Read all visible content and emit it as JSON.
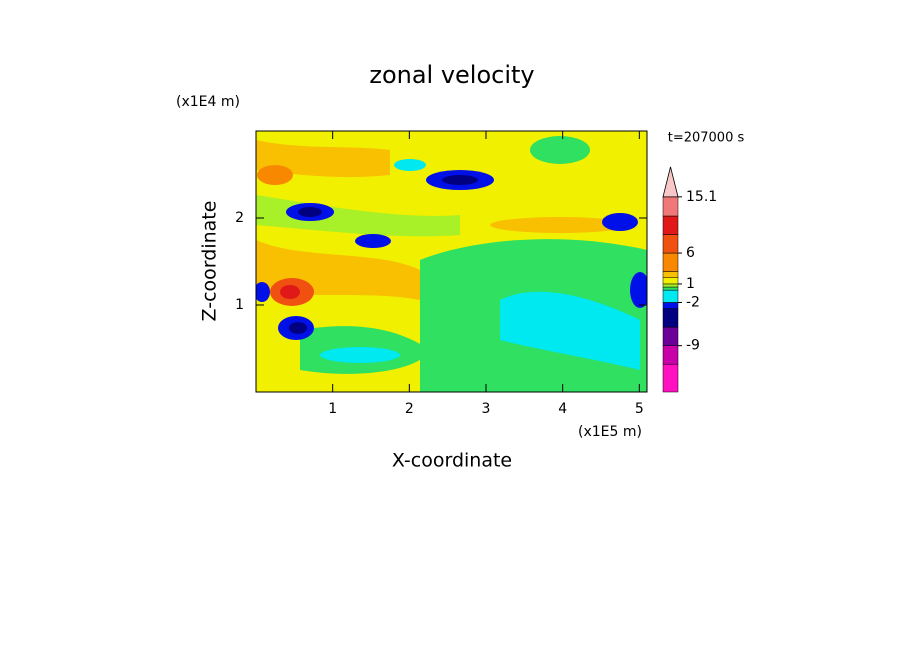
{
  "chart_data": {
    "type": "contour",
    "title": "zonal velocity",
    "x_label": "X-coordinate",
    "y_label": "Z-coordinate",
    "x_unit": "(x1E5 m)",
    "y_unit": "(x1E4 m)",
    "time_label": "t=207000 s",
    "xlim": [
      0,
      5.1
    ],
    "xticks": [
      1,
      2,
      3,
      4,
      5
    ],
    "ylim": [
      0,
      3
    ],
    "yticks": [
      1,
      2
    ],
    "colorbar": {
      "clim": [
        -16.5,
        15.4
      ],
      "boundaries": [
        -16.5,
        -12,
        -9,
        -6,
        -3,
        -2,
        0,
        0.5,
        1,
        2,
        3,
        6,
        9,
        12,
        15.1
      ],
      "colors": [
        "#ff10c0",
        "#c800a8",
        "#6a0098",
        "#000080",
        "#0010e8",
        "#00e8f0",
        "#30e060",
        "#a8f028",
        "#f0f000",
        "#f8c000",
        "#f88800",
        "#f05010",
        "#e01818",
        "#f07878"
      ],
      "top_color": "#f8c8c8",
      "ticks": [
        15.1,
        6,
        1,
        -2,
        -9
      ]
    }
  }
}
